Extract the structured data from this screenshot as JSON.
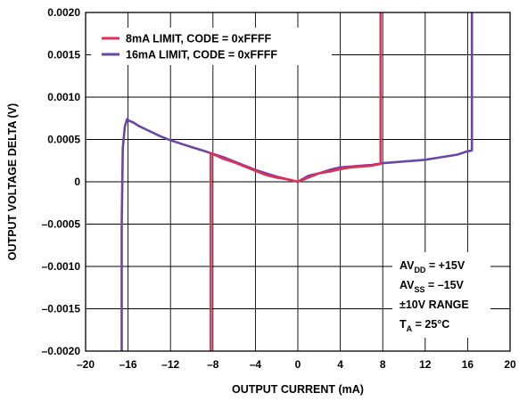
{
  "chart_data": {
    "type": "line",
    "title": "",
    "xlabel": "OUTPUT CURRENT (mA)",
    "ylabel": "OUTPUT VOLTAGE DELTA (V)",
    "xlim": [
      -20,
      20
    ],
    "ylim": [
      -0.002,
      0.002
    ],
    "x_ticks": [
      -20,
      -16,
      -12,
      -8,
      -4,
      0,
      4,
      8,
      12,
      16,
      20
    ],
    "x_tick_labels": [
      "–20",
      "–16",
      "–12",
      "–8",
      "–4",
      "0",
      "4",
      "8",
      "12",
      "16",
      "20"
    ],
    "y_ticks": [
      0.002,
      0.0015,
      0.001,
      0.0005,
      0,
      -0.0005,
      -0.001,
      -0.0015,
      -0.002
    ],
    "y_tick_labels": [
      "0.0020",
      "0.0015",
      "0.0010",
      "0.0005",
      "0",
      "–0.0005",
      "–0.0010",
      "–0.0015",
      "–0.0020"
    ],
    "grid": true,
    "legend_position": "top-left",
    "series": [
      {
        "name": "8mA LIMIT, CODE = 0xFFFF",
        "color": "#e0305a",
        "x": [
          -8.2,
          -8.2,
          -8.2,
          -8.1,
          -7.7,
          -7,
          -6,
          -5,
          -4,
          -3,
          -2,
          -1,
          0,
          1,
          2,
          3,
          4,
          5,
          6,
          7,
          7.8,
          7.8,
          7.8
        ],
        "y": [
          -0.002,
          0.0002,
          0.00034,
          0.00033,
          0.00031,
          0.00027,
          0.00023,
          0.00018,
          0.00013,
          8e-05,
          5e-05,
          3e-05,
          0.0,
          5e-05,
          0.0001,
          0.00012,
          0.00015,
          0.00017,
          0.00018,
          0.00019,
          0.00021,
          0.001,
          0.002
        ]
      },
      {
        "name": "16mA LIMIT, CODE = 0xFFFF",
        "color": "#6a46a8",
        "x": [
          -16.6,
          -16.6,
          -16.5,
          -16.3,
          -16.1,
          -15.9,
          -15.5,
          -15,
          -14,
          -13,
          -12,
          -11,
          -10,
          -9,
          -8,
          -7,
          -6,
          -5,
          -4,
          -3,
          -2,
          -1,
          0,
          1,
          2,
          3,
          4,
          5,
          6,
          7,
          8,
          9,
          10,
          11,
          12,
          13,
          14,
          15,
          16,
          16.4,
          16.4,
          16.4
        ],
        "y": [
          -0.002,
          -0.0005,
          0.0004,
          0.00065,
          0.00074,
          0.00072,
          0.0007,
          0.00066,
          0.0006,
          0.00054,
          0.00049,
          0.00045,
          0.00041,
          0.00037,
          0.00033,
          0.00029,
          0.00024,
          0.00019,
          0.00014,
          0.0001,
          6e-05,
          3e-05,
          0.0,
          7e-05,
          0.0001,
          0.00014,
          0.00017,
          0.00018,
          0.00019,
          0.0002,
          0.00022,
          0.00023,
          0.00024,
          0.00025,
          0.00026,
          0.00028,
          0.0003,
          0.00032,
          0.00036,
          0.00037,
          0.0012,
          0.002
        ]
      }
    ],
    "conditions": [
      {
        "main": "AV",
        "sub": "DD",
        "rest": " = +15V"
      },
      {
        "main": "AV",
        "sub": "SS",
        "rest": " = –15V"
      },
      {
        "main": "±10V RANGE",
        "sub": "",
        "rest": ""
      },
      {
        "main": "T",
        "sub": "A",
        "rest": " = 25°C"
      }
    ]
  }
}
